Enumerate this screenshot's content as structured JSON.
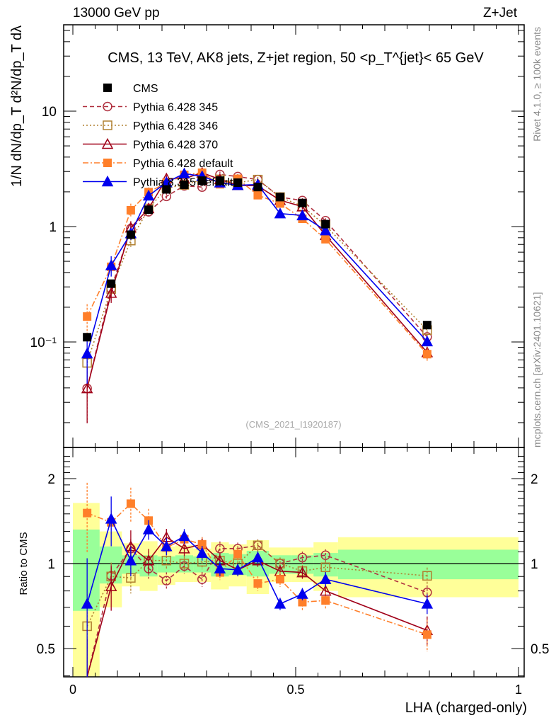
{
  "header": {
    "left": "13000 GeV pp",
    "right": "Z+Jet"
  },
  "side": {
    "rivet": "Rivet 4.1.0, ≥ 100k events",
    "mcplots": "mcplots.cern.ch [arXiv:2401.10621]"
  },
  "chart_data": {
    "type": "scatter",
    "title": "CMS, 13 TeV, AK8 jets, Z+jet region, 50 <p_T^{jet}< 65 GeV",
    "analysis_id": "(CMS_2021_I1920187)",
    "xlabel": "LHA (charged-only)",
    "ylabel": "1/N dN/dp_T  d²N/dp_T dλ",
    "ratio_ylabel": "Ratio to CMS",
    "xlim": [
      0,
      1
    ],
    "ylim": [
      0.0122,
      56
    ],
    "yscale": "log",
    "ratio_ylim": [
      0.4,
      2.5
    ],
    "x_ticks": [
      "0",
      "0.5",
      "1"
    ],
    "y_ticks": [
      "10",
      "1",
      "10⁻¹"
    ],
    "ratio_ticks": [
      "2",
      "1",
      "0.5"
    ],
    "legend_position": "top-left",
    "x": [
      0.032,
      0.086,
      0.13,
      0.17,
      0.21,
      0.25,
      0.29,
      0.33,
      0.37,
      0.415,
      0.465,
      0.515,
      0.567,
      0.795
    ],
    "bin_edges": [
      0,
      0.06,
      0.11,
      0.15,
      0.19,
      0.23,
      0.27,
      0.31,
      0.35,
      0.39,
      0.44,
      0.49,
      0.54,
      0.595,
      1.0
    ],
    "cms": {
      "name": "CMS",
      "values": [
        0.11,
        0.32,
        0.85,
        1.4,
        2.1,
        2.3,
        2.5,
        2.5,
        2.4,
        2.2,
        1.8,
        1.6,
        1.05,
        0.14
      ],
      "band_total": [
        [
          0.39,
          1.64
        ],
        [
          0.7,
          1.3
        ],
        [
          0.83,
          1.18
        ],
        [
          0.8,
          1.2
        ],
        [
          0.84,
          1.15
        ],
        [
          0.86,
          1.16
        ],
        [
          0.86,
          1.13
        ],
        [
          0.81,
          1.19
        ],
        [
          0.83,
          1.17
        ],
        [
          0.78,
          1.21
        ],
        [
          0.86,
          1.14
        ],
        [
          0.86,
          1.14
        ],
        [
          0.8,
          1.19
        ],
        [
          0.76,
          1.24
        ]
      ],
      "band_stat": [
        [
          0.68,
          1.32
        ],
        [
          0.85,
          1.15
        ],
        [
          0.92,
          1.07
        ],
        [
          0.9,
          1.07
        ],
        [
          0.93,
          1.06
        ],
        [
          0.93,
          1.07
        ],
        [
          0.93,
          1.06
        ],
        [
          0.9,
          1.09
        ],
        [
          0.91,
          1.08
        ],
        [
          0.9,
          1.11
        ],
        [
          0.92,
          1.07
        ],
        [
          0.92,
          1.07
        ],
        [
          0.9,
          1.09
        ],
        [
          0.88,
          1.12
        ]
      ],
      "color": "#000000"
    },
    "series": [
      {
        "name": "Pythia 6.428 345",
        "color": "#b0303f",
        "marker": "open-circle",
        "dash": "6,4",
        "ratio": [
          0.36,
          0.905,
          1.13,
          0.96,
          0.87,
          0.98,
          0.88,
          1.13,
          1.13,
          1.16,
          1.0,
          1.05,
          1.07,
          0.79
        ],
        "rel_err": [
          0.5,
          0.1,
          0.08,
          0.08,
          0.07,
          0.06,
          0.06,
          0.06,
          0.05,
          0.05,
          0.05,
          0.05,
          0.05,
          0.06
        ]
      },
      {
        "name": "Pythia 6.428 346",
        "color": "#b08030",
        "marker": "open-square",
        "dash": "2,3",
        "ratio": [
          0.6,
          0.9,
          0.89,
          1.025,
          1.025,
          1.0,
          1.015,
          1.025,
          1.0,
          1.16,
          1.0,
          0.94,
          0.97,
          0.905
        ],
        "rel_err": [
          0.3,
          0.12,
          0.12,
          0.08,
          0.07,
          0.06,
          0.06,
          0.06,
          0.05,
          0.05,
          0.05,
          0.05,
          0.05,
          0.07
        ]
      },
      {
        "name": "Pythia 6.428 370",
        "color": "#a00018",
        "marker": "open-triangle",
        "dash": "",
        "ratio": [
          0.36,
          0.83,
          1.15,
          1.025,
          1.24,
          1.13,
          1.17,
          1.025,
          0.95,
          1.025,
          0.94,
          0.93,
          0.8,
          0.58
        ],
        "rel_err": [
          0.5,
          0.18,
          0.14,
          0.1,
          0.07,
          0.06,
          0.06,
          0.06,
          0.05,
          0.05,
          0.05,
          0.05,
          0.05,
          0.12
        ]
      },
      {
        "name": "Pythia 6.428 default",
        "color": "#ff7f2a",
        "marker": "filled-square",
        "dash": "8,3,2,3",
        "ratio": [
          1.51,
          1.4,
          1.63,
          1.42,
          1.14,
          1.22,
          1.17,
          0.93,
          1.08,
          0.85,
          0.88,
          0.73,
          0.74,
          0.56
        ],
        "rel_err": [
          0.28,
          0.1,
          0.14,
          0.1,
          0.07,
          0.06,
          0.06,
          0.06,
          0.05,
          0.06,
          0.06,
          0.07,
          0.07,
          0.13
        ]
      },
      {
        "name": "Pythia 8.315 default",
        "color": "#0000ee",
        "marker": "filled-triangle",
        "dash": "",
        "ratio": [
          0.72,
          1.44,
          1.025,
          1.32,
          1.15,
          1.25,
          1.09,
          0.96,
          0.95,
          1.05,
          0.72,
          0.78,
          0.88,
          0.72
        ],
        "rel_err": [
          0.45,
          0.2,
          0.12,
          0.08,
          0.07,
          0.06,
          0.06,
          0.06,
          0.05,
          0.05,
          0.05,
          0.05,
          0.06,
          0.08
        ]
      }
    ]
  }
}
